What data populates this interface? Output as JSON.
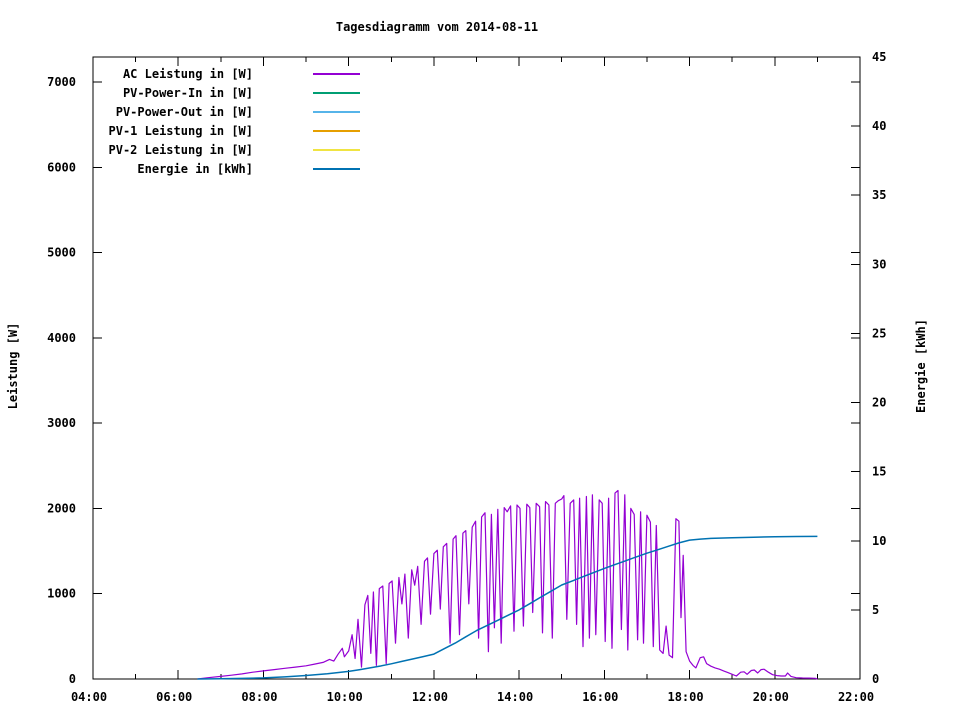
{
  "chart_data": {
    "type": "line",
    "title": "Tagesdiagramm vom 2014-08-11",
    "x_axis": {
      "min_hour": 4,
      "max_hour": 22,
      "major_tick_hours": [
        4,
        6,
        8,
        10,
        12,
        14,
        16,
        18,
        20,
        22
      ],
      "major_tick_labels": [
        "04:00",
        "06:00",
        "08:00",
        "10:00",
        "12:00",
        "14:00",
        "16:00",
        "18:00",
        "20:00",
        "22:00"
      ],
      "minor_tick_hours": [
        5,
        7,
        9,
        11,
        13,
        15,
        17,
        19,
        21
      ]
    },
    "y_axis": {
      "label": "Leistung [W]",
      "min": 0,
      "max": 7293,
      "tick_values": [
        0,
        1000,
        2000,
        3000,
        4000,
        5000,
        6000,
        7000
      ],
      "tick_labels": [
        "0",
        "1000",
        "2000",
        "3000",
        "4000",
        "5000",
        "6000",
        "7000"
      ]
    },
    "y2_axis": {
      "label": "Energie [kWh]",
      "min": 0,
      "max": 45,
      "tick_values": [
        0,
        5,
        10,
        15,
        20,
        25,
        30,
        35,
        40,
        45
      ],
      "tick_labels": [
        "0",
        "5",
        "10",
        "15",
        "20",
        "25",
        "30",
        "35",
        "40",
        "45"
      ]
    },
    "legend": [
      {
        "label": "AC Leistung in [W]",
        "color": "#9400d3"
      },
      {
        "label": "PV-Power-In in [W]",
        "color": "#009e73"
      },
      {
        "label": "PV-Power-Out in [W]",
        "color": "#56b4e9"
      },
      {
        "label": "PV-1 Leistung in [W]",
        "color": "#e69f00"
      },
      {
        "label": "PV-2 Leistung in [W]",
        "color": "#f0e442"
      },
      {
        "label": "Energie in [kWh]",
        "color": "#0072b2"
      }
    ],
    "series": [
      {
        "name": "AC Leistung in [W]",
        "slug": "ac-leistung",
        "axis": "y1",
        "color": "#9400d3",
        "width": 1.2,
        "points": [
          [
            6.45,
            0
          ],
          [
            6.7,
            15
          ],
          [
            7.0,
            30
          ],
          [
            7.25,
            45
          ],
          [
            7.5,
            60
          ],
          [
            7.75,
            80
          ],
          [
            8.0,
            95
          ],
          [
            8.25,
            110
          ],
          [
            8.5,
            125
          ],
          [
            8.75,
            140
          ],
          [
            9.0,
            155
          ],
          [
            9.2,
            175
          ],
          [
            9.4,
            195
          ],
          [
            9.55,
            230
          ],
          [
            9.65,
            210
          ],
          [
            9.75,
            290
          ],
          [
            9.85,
            360
          ],
          [
            9.9,
            260
          ],
          [
            10.0,
            330
          ],
          [
            10.08,
            520
          ],
          [
            10.15,
            240
          ],
          [
            10.22,
            700
          ],
          [
            10.3,
            140
          ],
          [
            10.38,
            870
          ],
          [
            10.45,
            980
          ],
          [
            10.52,
            300
          ],
          [
            10.58,
            1020
          ],
          [
            10.65,
            160
          ],
          [
            10.72,
            1060
          ],
          [
            10.8,
            1090
          ],
          [
            10.88,
            180
          ],
          [
            10.95,
            1120
          ],
          [
            11.02,
            1150
          ],
          [
            11.1,
            420
          ],
          [
            11.18,
            1190
          ],
          [
            11.25,
            880
          ],
          [
            11.32,
            1230
          ],
          [
            11.4,
            480
          ],
          [
            11.48,
            1280
          ],
          [
            11.55,
            1100
          ],
          [
            11.62,
            1320
          ],
          [
            11.7,
            640
          ],
          [
            11.78,
            1380
          ],
          [
            11.85,
            1420
          ],
          [
            11.92,
            760
          ],
          [
            12.0,
            1470
          ],
          [
            12.08,
            1510
          ],
          [
            12.15,
            820
          ],
          [
            12.22,
            1550
          ],
          [
            12.3,
            1590
          ],
          [
            12.38,
            420
          ],
          [
            12.45,
            1640
          ],
          [
            12.52,
            1680
          ],
          [
            12.6,
            520
          ],
          [
            12.68,
            1710
          ],
          [
            12.75,
            1740
          ],
          [
            12.82,
            880
          ],
          [
            12.9,
            1780
          ],
          [
            12.98,
            1850
          ],
          [
            13.05,
            480
          ],
          [
            13.12,
            1900
          ],
          [
            13.2,
            1950
          ],
          [
            13.28,
            320
          ],
          [
            13.35,
            1930
          ],
          [
            13.42,
            600
          ],
          [
            13.5,
            1990
          ],
          [
            13.58,
            420
          ],
          [
            13.65,
            2010
          ],
          [
            13.72,
            1960
          ],
          [
            13.8,
            2030
          ],
          [
            13.88,
            560
          ],
          [
            13.95,
            2040
          ],
          [
            14.02,
            2000
          ],
          [
            14.1,
            620
          ],
          [
            14.18,
            2050
          ],
          [
            14.25,
            2010
          ],
          [
            14.32,
            780
          ],
          [
            14.4,
            2060
          ],
          [
            14.48,
            2020
          ],
          [
            14.55,
            540
          ],
          [
            14.62,
            2080
          ],
          [
            14.7,
            2040
          ],
          [
            14.78,
            480
          ],
          [
            14.85,
            2060
          ],
          [
            14.92,
            2090
          ],
          [
            15.0,
            2110
          ],
          [
            15.05,
            2150
          ],
          [
            15.12,
            700
          ],
          [
            15.2,
            2060
          ],
          [
            15.28,
            2100
          ],
          [
            15.35,
            640
          ],
          [
            15.42,
            2120
          ],
          [
            15.5,
            380
          ],
          [
            15.58,
            2140
          ],
          [
            15.65,
            480
          ],
          [
            15.72,
            2160
          ],
          [
            15.8,
            520
          ],
          [
            15.88,
            2100
          ],
          [
            15.95,
            2060
          ],
          [
            16.02,
            440
          ],
          [
            16.1,
            2120
          ],
          [
            16.18,
            360
          ],
          [
            16.25,
            2180
          ],
          [
            16.32,
            2210
          ],
          [
            16.4,
            580
          ],
          [
            16.48,
            2160
          ],
          [
            16.55,
            340
          ],
          [
            16.62,
            2000
          ],
          [
            16.7,
            1930
          ],
          [
            16.78,
            460
          ],
          [
            16.85,
            1960
          ],
          [
            16.92,
            420
          ],
          [
            17.0,
            1920
          ],
          [
            17.08,
            1840
          ],
          [
            17.15,
            380
          ],
          [
            17.22,
            1800
          ],
          [
            17.3,
            340
          ],
          [
            17.38,
            300
          ],
          [
            17.45,
            620
          ],
          [
            17.52,
            280
          ],
          [
            17.6,
            250
          ],
          [
            17.68,
            1880
          ],
          [
            17.75,
            1850
          ],
          [
            17.8,
            720
          ],
          [
            17.85,
            1450
          ],
          [
            17.92,
            320
          ],
          [
            18.0,
            210
          ],
          [
            18.08,
            160
          ],
          [
            18.15,
            130
          ],
          [
            18.25,
            250
          ],
          [
            18.33,
            260
          ],
          [
            18.4,
            180
          ],
          [
            18.5,
            150
          ],
          [
            18.6,
            130
          ],
          [
            18.7,
            115
          ],
          [
            18.8,
            95
          ],
          [
            18.9,
            75
          ],
          [
            19.0,
            55
          ],
          [
            19.1,
            35
          ],
          [
            19.2,
            80
          ],
          [
            19.28,
            85
          ],
          [
            19.35,
            55
          ],
          [
            19.45,
            100
          ],
          [
            19.52,
            105
          ],
          [
            19.6,
            70
          ],
          [
            19.68,
            110
          ],
          [
            19.75,
            115
          ],
          [
            19.85,
            80
          ],
          [
            19.95,
            50
          ],
          [
            20.05,
            40
          ],
          [
            20.15,
            35
          ],
          [
            20.25,
            35
          ],
          [
            20.3,
            70
          ],
          [
            20.38,
            30
          ],
          [
            20.5,
            15
          ],
          [
            20.65,
            12
          ],
          [
            20.8,
            10
          ],
          [
            20.95,
            8
          ],
          [
            21.0,
            0
          ]
        ]
      },
      {
        "name": "PV-Power-In in [W]",
        "slug": "pv-power-in",
        "axis": "y1",
        "color": "#009e73",
        "width": 1.2,
        "points": []
      },
      {
        "name": "PV-Power-Out in [W]",
        "slug": "pv-power-out",
        "axis": "y1",
        "color": "#56b4e9",
        "width": 1.2,
        "points": []
      },
      {
        "name": "PV-1 Leistung in [W]",
        "slug": "pv1-leistung",
        "axis": "y1",
        "color": "#e69f00",
        "width": 1.2,
        "points": []
      },
      {
        "name": "PV-2 Leistung in [W]",
        "slug": "pv2-leistung",
        "axis": "y1",
        "color": "#f0e442",
        "width": 1.2,
        "points": []
      },
      {
        "name": "Energie in [kWh]",
        "slug": "energie",
        "axis": "y2",
        "color": "#0072b2",
        "width": 1.5,
        "points": [
          [
            6.45,
            0
          ],
          [
            7.0,
            0.02
          ],
          [
            7.5,
            0.04
          ],
          [
            8.0,
            0.08
          ],
          [
            8.5,
            0.15
          ],
          [
            9.0,
            0.25
          ],
          [
            9.5,
            0.38
          ],
          [
            10.0,
            0.55
          ],
          [
            10.25,
            0.67
          ],
          [
            10.5,
            0.8
          ],
          [
            10.75,
            0.94
          ],
          [
            11.0,
            1.1
          ],
          [
            11.25,
            1.27
          ],
          [
            11.5,
            1.45
          ],
          [
            11.75,
            1.62
          ],
          [
            12.0,
            1.8
          ],
          [
            12.25,
            2.2
          ],
          [
            12.5,
            2.6
          ],
          [
            12.75,
            3.05
          ],
          [
            13.0,
            3.5
          ],
          [
            13.25,
            3.88
          ],
          [
            13.5,
            4.25
          ],
          [
            13.75,
            4.62
          ],
          [
            14.0,
            5.0
          ],
          [
            14.25,
            5.45
          ],
          [
            14.5,
            5.9
          ],
          [
            14.75,
            6.35
          ],
          [
            15.0,
            6.8
          ],
          [
            15.25,
            7.1
          ],
          [
            15.5,
            7.4
          ],
          [
            15.75,
            7.7
          ],
          [
            16.0,
            8.0
          ],
          [
            16.25,
            8.28
          ],
          [
            16.5,
            8.55
          ],
          [
            16.75,
            8.83
          ],
          [
            17.0,
            9.1
          ],
          [
            17.25,
            9.35
          ],
          [
            17.5,
            9.6
          ],
          [
            17.75,
            9.85
          ],
          [
            18.0,
            10.05
          ],
          [
            18.25,
            10.12
          ],
          [
            18.5,
            10.17
          ],
          [
            19.0,
            10.22
          ],
          [
            19.5,
            10.26
          ],
          [
            20.0,
            10.29
          ],
          [
            20.5,
            10.31
          ],
          [
            21.0,
            10.32
          ]
        ]
      }
    ],
    "layout": {
      "grid": false,
      "legend_position": "top-left-inside",
      "background": "#ffffff",
      "border_color": "#000000"
    }
  }
}
